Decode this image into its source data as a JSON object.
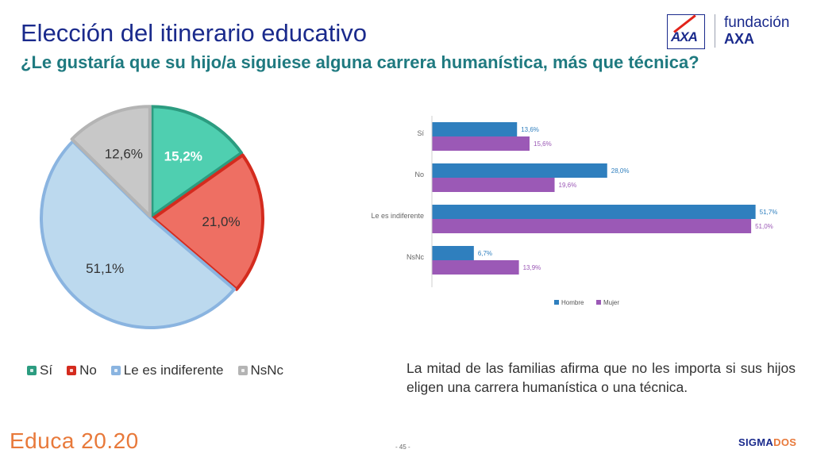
{
  "title": "Elección del itinerario educativo",
  "subtitle": "¿Le gustaría que su hijo/a siguiese alguna carrera humanística, más que técnica?",
  "logo": {
    "box_text": "AXA",
    "line1": "fundación",
    "line2": "AXA"
  },
  "pie_legend": [
    "Sí",
    "No",
    "Le es indiferente",
    "NsNc"
  ],
  "caption": "La mitad de las familias afirma que no les importa si sus hijos eligen una carrera humanística o una técnica.",
  "footer": {
    "brand": "Educa 20.20",
    "page": "- 45 -",
    "sigma_a": "SIGMA",
    "sigma_b": "DOS"
  },
  "colors": {
    "si_fill": "#4fcfb0",
    "si_stroke": "#2c9c80",
    "no_fill": "#ee6f63",
    "no_stroke": "#d42b1e",
    "ind_fill": "#bcd9ee",
    "ind_stroke": "#8ab4e0",
    "nsnc_fill": "#c8c8c8",
    "nsnc_stroke": "#b4b4b4",
    "hombre": "#2f7fbe",
    "mujer": "#9b59b6"
  },
  "chart_data": [
    {
      "type": "pie",
      "categories": [
        "Sí",
        "No",
        "Le es indiferente",
        "NsNc"
      ],
      "values": [
        15.2,
        21.0,
        51.1,
        12.6
      ],
      "labels": [
        "15,2%",
        "21,0%",
        "51,1%",
        "12,6%"
      ]
    },
    {
      "type": "bar",
      "orientation": "horizontal",
      "categories": [
        "Sí",
        "No",
        "Le es indiferente",
        "NsNc"
      ],
      "series": [
        {
          "name": "Hombre",
          "values": [
            13.6,
            28.0,
            51.7,
            6.7
          ],
          "labels": [
            "13,6%",
            "28,0%",
            "51,7%",
            "6,7%"
          ]
        },
        {
          "name": "Mujer",
          "values": [
            15.6,
            19.6,
            51.0,
            13.9
          ],
          "labels": [
            "15,6%",
            "19,6%",
            "51,0%",
            "13,9%"
          ]
        }
      ],
      "legend_position": "bottom",
      "grid": false
    }
  ]
}
